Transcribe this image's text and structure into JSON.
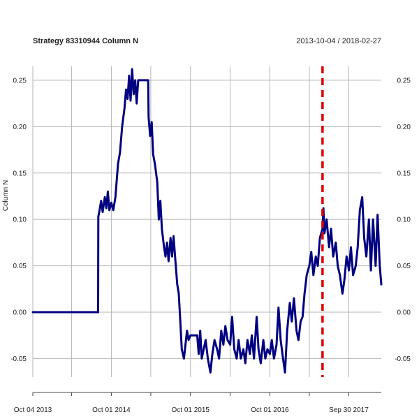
{
  "chart_data": {
    "type": "line",
    "title": "Strategy 83310944 Column N",
    "date_range": "2013-10-04 / 2018-02-27",
    "ylabel": "Column N",
    "xlim": [
      "2013-10-04",
      "2018-02-27"
    ],
    "ylim": [
      -0.07,
      0.265
    ],
    "grid": true,
    "y_ticks": [
      {
        "value": 0.25,
        "label": "0.25"
      },
      {
        "value": 0.2,
        "label": "0.20"
      },
      {
        "value": 0.15,
        "label": "0.15"
      },
      {
        "value": 0.1,
        "label": "0.10"
      },
      {
        "value": 0.05,
        "label": "0.05"
      },
      {
        "value": 0.0,
        "label": "0.00"
      },
      {
        "value": -0.05,
        "label": "-0.05"
      }
    ],
    "x_gridlines": [
      "2013-10-04",
      "2014-04-01",
      "2014-10-01",
      "2015-04-01",
      "2015-10-01",
      "2016-04-01",
      "2016-10-01",
      "2017-04-01",
      "2017-09-30"
    ],
    "x_ticks": [
      {
        "value": "2013-10-04",
        "label": "Oct 04 2013"
      },
      {
        "value": "2014-10-01",
        "label": "Oct 01 2014"
      },
      {
        "value": "2015-10-01",
        "label": "Oct 01 2015"
      },
      {
        "value": "2016-10-01",
        "label": "Oct 01 2016"
      },
      {
        "value": "2017-09-30",
        "label": "Sep 30 2017"
      }
    ],
    "vertical_marker": {
      "x": "2017-06-01",
      "color": "#dd0000",
      "style": "dashed"
    },
    "series": [
      {
        "color": "#000080",
        "points": [
          [
            "2013-10-04",
            0.0
          ],
          [
            "2014-08-01",
            0.0
          ],
          [
            "2014-08-02",
            0.103
          ],
          [
            "2014-08-08",
            0.11
          ],
          [
            "2014-08-15",
            0.12
          ],
          [
            "2014-08-22",
            0.108
          ],
          [
            "2014-09-01",
            0.124
          ],
          [
            "2014-09-08",
            0.112
          ],
          [
            "2014-09-15",
            0.13
          ],
          [
            "2014-09-22",
            0.11
          ],
          [
            "2014-10-01",
            0.118
          ],
          [
            "2014-10-10",
            0.11
          ],
          [
            "2014-10-20",
            0.124
          ],
          [
            "2014-11-01",
            0.16
          ],
          [
            "2014-11-10",
            0.172
          ],
          [
            "2014-11-20",
            0.2
          ],
          [
            "2014-12-01",
            0.22
          ],
          [
            "2014-12-08",
            0.24
          ],
          [
            "2014-12-15",
            0.23
          ],
          [
            "2014-12-22",
            0.255
          ],
          [
            "2014-12-29",
            0.228
          ],
          [
            "2015-01-05",
            0.262
          ],
          [
            "2015-01-12",
            0.235
          ],
          [
            "2015-01-19",
            0.25
          ],
          [
            "2015-01-26",
            0.225
          ],
          [
            "2015-02-02",
            0.25
          ],
          [
            "2015-03-20",
            0.25
          ],
          [
            "2015-03-22",
            0.21
          ],
          [
            "2015-03-29",
            0.19
          ],
          [
            "2015-04-05",
            0.205
          ],
          [
            "2015-04-12",
            0.17
          ],
          [
            "2015-04-20",
            0.16
          ],
          [
            "2015-05-01",
            0.14
          ],
          [
            "2015-05-08",
            0.1
          ],
          [
            "2015-05-15",
            0.12
          ],
          [
            "2015-05-22",
            0.09
          ],
          [
            "2015-06-01",
            0.07
          ],
          [
            "2015-06-08",
            0.06
          ],
          [
            "2015-06-15",
            0.075
          ],
          [
            "2015-06-22",
            0.055
          ],
          [
            "2015-07-01",
            0.08
          ],
          [
            "2015-07-08",
            0.06
          ],
          [
            "2015-07-15",
            0.082
          ],
          [
            "2015-07-22",
            0.06
          ],
          [
            "2015-08-01",
            0.03
          ],
          [
            "2015-08-08",
            0.02
          ],
          [
            "2015-08-15",
            -0.01
          ],
          [
            "2015-08-22",
            -0.04
          ],
          [
            "2015-09-01",
            -0.05
          ],
          [
            "2015-09-08",
            -0.035
          ],
          [
            "2015-09-15",
            -0.02
          ],
          [
            "2015-09-22",
            -0.03
          ],
          [
            "2015-10-01",
            -0.025
          ],
          [
            "2015-11-01",
            -0.025
          ],
          [
            "2015-11-08",
            -0.045
          ],
          [
            "2015-11-15",
            -0.02
          ],
          [
            "2015-11-22",
            -0.05
          ],
          [
            "2015-12-01",
            -0.04
          ],
          [
            "2015-12-10",
            -0.03
          ],
          [
            "2015-12-20",
            -0.05
          ],
          [
            "2016-01-01",
            -0.065
          ],
          [
            "2016-01-10",
            -0.045
          ],
          [
            "2016-01-20",
            -0.03
          ],
          [
            "2016-02-01",
            -0.04
          ],
          [
            "2016-02-10",
            -0.05
          ],
          [
            "2016-02-20",
            -0.02
          ],
          [
            "2016-03-01",
            -0.035
          ],
          [
            "2016-03-10",
            -0.015
          ],
          [
            "2016-03-20",
            -0.03
          ],
          [
            "2016-04-01",
            -0.035
          ],
          [
            "2016-04-10",
            -0.005
          ],
          [
            "2016-04-20",
            -0.04
          ],
          [
            "2016-05-01",
            -0.05
          ],
          [
            "2016-05-10",
            -0.03
          ],
          [
            "2016-05-20",
            -0.05
          ],
          [
            "2016-06-01",
            -0.04
          ],
          [
            "2016-06-10",
            -0.055
          ],
          [
            "2016-06-20",
            -0.03
          ],
          [
            "2016-07-01",
            -0.045
          ],
          [
            "2016-07-10",
            -0.025
          ],
          [
            "2016-07-20",
            -0.05
          ],
          [
            "2016-08-01",
            -0.005
          ],
          [
            "2016-08-10",
            -0.04
          ],
          [
            "2016-08-20",
            -0.055
          ],
          [
            "2016-09-01",
            -0.03
          ],
          [
            "2016-09-10",
            -0.05
          ],
          [
            "2016-09-20",
            -0.04
          ],
          [
            "2016-10-01",
            -0.045
          ],
          [
            "2016-10-10",
            -0.03
          ],
          [
            "2016-10-20",
            -0.05
          ],
          [
            "2016-11-01",
            -0.035
          ],
          [
            "2016-11-10",
            0.005
          ],
          [
            "2016-11-20",
            -0.03
          ],
          [
            "2016-12-01",
            -0.05
          ],
          [
            "2016-12-10",
            -0.065
          ],
          [
            "2016-12-20",
            -0.02
          ],
          [
            "2017-01-01",
            0.01
          ],
          [
            "2017-01-10",
            -0.01
          ],
          [
            "2017-01-20",
            0.015
          ],
          [
            "2017-02-01",
            -0.02
          ],
          [
            "2017-02-10",
            -0.03
          ],
          [
            "2017-02-20",
            -0.01
          ],
          [
            "2017-03-01",
            -0.005
          ],
          [
            "2017-03-10",
            0.02
          ],
          [
            "2017-03-20",
            0.04
          ],
          [
            "2017-04-01",
            0.05
          ],
          [
            "2017-04-10",
            0.065
          ],
          [
            "2017-04-20",
            0.04
          ],
          [
            "2017-05-01",
            0.06
          ],
          [
            "2017-05-10",
            0.05
          ],
          [
            "2017-05-20",
            0.08
          ],
          [
            "2017-06-01",
            0.09
          ],
          [
            "2017-06-05",
            0.112
          ],
          [
            "2017-06-10",
            0.085
          ],
          [
            "2017-06-20",
            0.1
          ],
          [
            "2017-07-01",
            0.07
          ],
          [
            "2017-07-10",
            0.09
          ],
          [
            "2017-07-20",
            0.06
          ],
          [
            "2017-08-01",
            0.075
          ],
          [
            "2017-08-10",
            0.05
          ],
          [
            "2017-08-20",
            0.04
          ],
          [
            "2017-09-01",
            0.02
          ],
          [
            "2017-09-10",
            0.035
          ],
          [
            "2017-09-20",
            0.06
          ],
          [
            "2017-10-01",
            0.045
          ],
          [
            "2017-10-10",
            0.07
          ],
          [
            "2017-10-20",
            0.04
          ],
          [
            "2017-11-01",
            0.05
          ],
          [
            "2017-11-10",
            0.07
          ],
          [
            "2017-11-20",
            0.11
          ],
          [
            "2017-12-01",
            0.124
          ],
          [
            "2017-12-10",
            0.08
          ],
          [
            "2017-12-20",
            0.06
          ],
          [
            "2018-01-01",
            0.1
          ],
          [
            "2018-01-10",
            0.045
          ],
          [
            "2018-01-20",
            0.1
          ],
          [
            "2018-02-01",
            0.05
          ],
          [
            "2018-02-10",
            0.105
          ],
          [
            "2018-02-20",
            0.05
          ],
          [
            "2018-02-27",
            0.03
          ]
        ]
      }
    ]
  }
}
